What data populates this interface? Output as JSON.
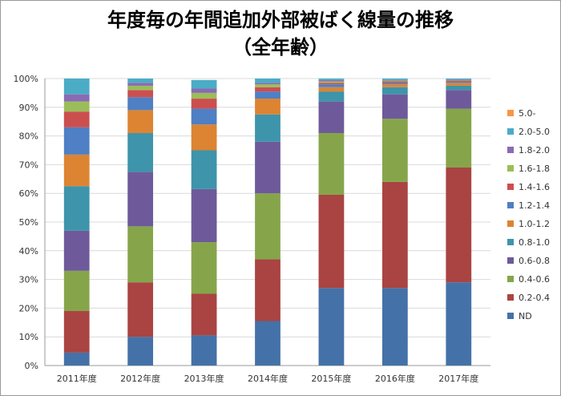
{
  "chart_data": {
    "type": "bar",
    "stacked": true,
    "normalized": true,
    "title": "年度毎の年間追加外部被ばく線量の推移",
    "subtitle": "（全年齢）",
    "categories": [
      "2011年度",
      "2012年度",
      "2013年度",
      "2014年度",
      "2015年度",
      "2016年度",
      "2017年度"
    ],
    "ylim": [
      0,
      100
    ],
    "yticks": [
      "0%",
      "10%",
      "20%",
      "30%",
      "40%",
      "50%",
      "60%",
      "70%",
      "80%",
      "90%",
      "100%"
    ],
    "grid": true,
    "legend_position": "right",
    "series": [
      {
        "name": "ND",
        "color": "#4472a8",
        "values": [
          4.5,
          10.0,
          10.5,
          15.5,
          27.0,
          27.0,
          29.0
        ]
      },
      {
        "name": "0.2-0.4",
        "color": "#a94442",
        "values": [
          14.5,
          19.0,
          14.5,
          21.5,
          32.5,
          37.0,
          40.0
        ]
      },
      {
        "name": "0.4-0.6",
        "color": "#86a54b",
        "values": [
          14.0,
          19.5,
          18.0,
          23.0,
          21.5,
          22.0,
          20.5
        ]
      },
      {
        "name": "0.6-0.8",
        "color": "#6e5a9a",
        "values": [
          14.0,
          19.0,
          18.5,
          18.0,
          11.0,
          8.5,
          6.5
        ]
      },
      {
        "name": "0.8-1.0",
        "color": "#3d94ab",
        "values": [
          15.5,
          13.5,
          13.5,
          9.5,
          3.5,
          2.5,
          1.5
        ]
      },
      {
        "name": "1.0-1.2",
        "color": "#dc8432",
        "values": [
          11.0,
          8.0,
          9.0,
          5.5,
          1.5,
          1.0,
          1.0
        ]
      },
      {
        "name": "1.2-1.4",
        "color": "#4f7fc4",
        "values": [
          9.5,
          4.5,
          5.5,
          2.5,
          1.0,
          0.5,
          0.5
        ]
      },
      {
        "name": "1.4-1.6",
        "color": "#cc4f4f",
        "values": [
          5.5,
          2.5,
          3.5,
          1.5,
          0.5,
          0.5,
          0.3
        ]
      },
      {
        "name": "1.6-1.8",
        "color": "#9bbd59",
        "values": [
          3.5,
          1.5,
          2.0,
          1.0,
          0.5,
          0.3,
          0.2
        ]
      },
      {
        "name": "1.8-2.0",
        "color": "#8a6ab4",
        "values": [
          2.5,
          1.0,
          1.5,
          0.5,
          0.5,
          0.2,
          0.2
        ]
      },
      {
        "name": "2.0-5.0",
        "color": "#4bacc6",
        "values": [
          5.5,
          1.5,
          3.0,
          1.5,
          0.5,
          0.5,
          0.3
        ]
      },
      {
        "name": "5.0-",
        "color": "#f79646",
        "values": [
          0.0,
          0.0,
          0.0,
          0.0,
          0.0,
          0.0,
          0.0
        ]
      }
    ]
  }
}
